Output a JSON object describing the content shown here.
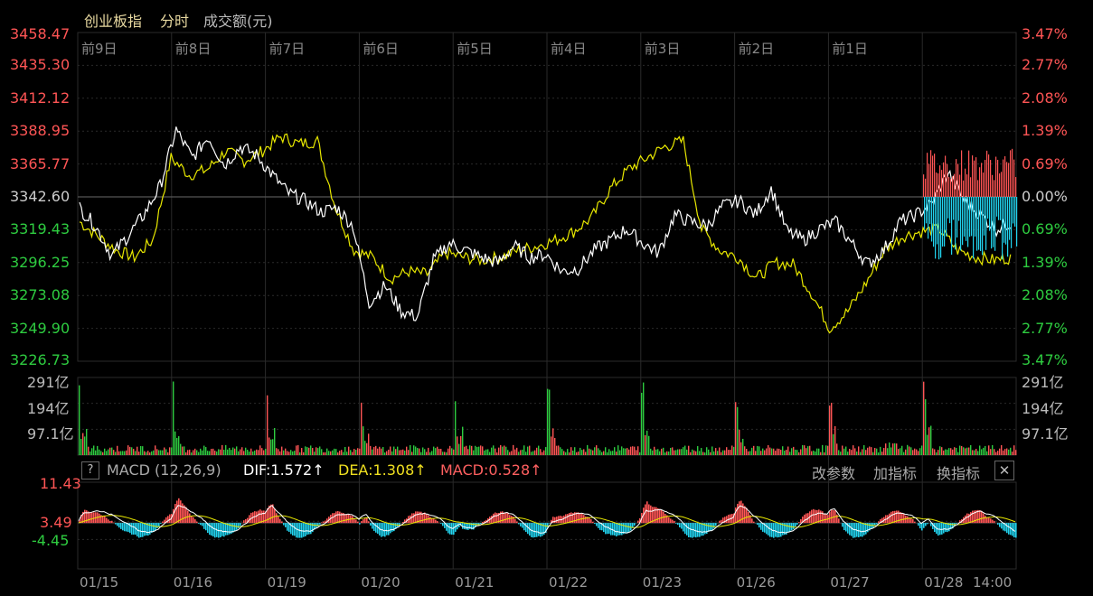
{
  "header": {
    "index_name": "创业板指",
    "tab_time": "分时",
    "metric": "成交额(元)"
  },
  "price_axis": {
    "left_labels": [
      "3458.47",
      "3435.30",
      "3412.12",
      "3388.95",
      "3365.77",
      "3342.60",
      "3319.43",
      "3296.25",
      "3273.08",
      "3249.90",
      "3226.73"
    ],
    "right_labels": [
      "3.47%",
      "2.77%",
      "2.08%",
      "1.39%",
      "0.69%",
      "0.00%",
      "0.69%",
      "1.39%",
      "2.08%",
      "2.77%",
      "3.47%"
    ],
    "min": 3226.73,
    "max": 3458.47,
    "base": 3342.6
  },
  "day_labels": [
    "前9日",
    "前8日",
    "前7日",
    "前6日",
    "前5日",
    "前4日",
    "前3日",
    "前2日",
    "前1日"
  ],
  "volume_axis": {
    "left_labels": [
      "291亿",
      "194亿",
      "97.1亿"
    ],
    "right_labels": [
      "291亿",
      "194亿",
      "97.1亿"
    ],
    "max": 291
  },
  "macd": {
    "help": "?",
    "title": "MACD (12,26,9)",
    "dif": "DIF:1.572↑",
    "dea": "DEA:1.308↑",
    "value": "MACD:0.528↑",
    "btn_params": "改参数",
    "btn_add": "加指标",
    "btn_switch": "换指标",
    "close": "✕",
    "axis_labels": [
      "11.43",
      "3.49",
      "-4.45"
    ]
  },
  "date_labels": [
    "01/15",
    "01/16",
    "01/19",
    "01/20",
    "01/21",
    "01/22",
    "01/23",
    "01/26",
    "01/27",
    "01/28",
    "14:00"
  ],
  "colors": {
    "up": "#ff5555",
    "down": "#22d3ee",
    "green": "#2ecc40",
    "white_line": "#ffffff",
    "yellow_line": "#e8e800",
    "grid": "#2a2a2a",
    "title": "#e8d9a0"
  },
  "chart_data": {
    "type": "line",
    "series": [
      {
        "values": [
          3335,
          3322,
          3301,
          3315,
          3330,
          3350,
          3390,
          3370,
          3385,
          3365,
          3378,
          3372,
          3358,
          3345,
          3340,
          3332,
          3335,
          3322,
          3268,
          3280,
          3262,
          3258,
          3298,
          3310,
          3305,
          3300,
          3296,
          3308,
          3300,
          3302,
          3290,
          3292,
          3305,
          3312,
          3320,
          3310,
          3303,
          3330,
          3325,
          3322,
          3336,
          3340,
          3330,
          3348,
          3318,
          3312,
          3320,
          3325,
          3310,
          3295,
          3305,
          3325,
          3330,
          3338,
          3360,
          3340,
          3330,
          3320,
          3325
        ]
      },
      {
        "values": [
          3325,
          3315,
          3305,
          3300,
          3312,
          3370,
          3358,
          3362,
          3375,
          3368,
          3375,
          3385,
          3380,
          3382,
          3335,
          3305,
          3300,
          3285,
          3290,
          3288,
          3303,
          3300,
          3298,
          3300,
          3305,
          3308,
          3312,
          3318,
          3328,
          3348,
          3362,
          3370,
          3378,
          3382,
          3320,
          3305,
          3300,
          3285,
          3296,
          3295,
          3275,
          3250,
          3262,
          3282,
          3305,
          3315,
          3318,
          3320,
          3305,
          3300,
          3298,
          3300
        ]
      }
    ]
  }
}
